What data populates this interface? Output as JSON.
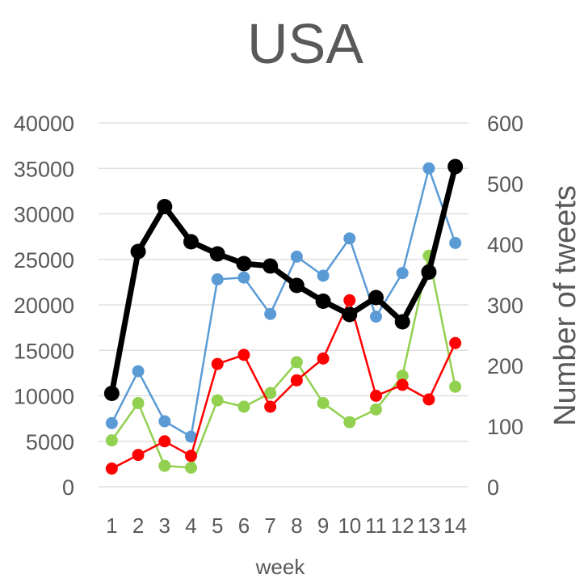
{
  "chart_data": {
    "type": "line",
    "title": "USA",
    "xlabel": "week",
    "ylabel_left": "",
    "ylabel_right": "Number of tweets",
    "categories": [
      "1",
      "2",
      "3",
      "4",
      "5",
      "6",
      "7",
      "8",
      "9",
      "10",
      "11",
      "12",
      "13",
      "14"
    ],
    "y_left": {
      "min": 0,
      "max": 40000,
      "step": 5000,
      "ticks": [
        "0",
        "5000",
        "10000",
        "15000",
        "20000",
        "25000",
        "30000",
        "35000",
        "40000"
      ]
    },
    "y_right": {
      "min": 0,
      "max": 600,
      "step": 100,
      "ticks": [
        "0",
        "100",
        "200",
        "300",
        "400",
        "500",
        "600"
      ]
    },
    "grid": true,
    "legend": "none",
    "series": [
      {
        "axis": "left",
        "color": "#5b9bd5",
        "values": [
          7000,
          12700,
          7200,
          5500,
          22800,
          23000,
          19000,
          25300,
          23200,
          27300,
          18700,
          23500,
          35000,
          26800
        ]
      },
      {
        "axis": "left",
        "color": "#92d050",
        "values": [
          5100,
          9200,
          2300,
          2100,
          9500,
          8800,
          10300,
          13700,
          9200,
          7100,
          8500,
          12200,
          25400,
          11000
        ]
      },
      {
        "axis": "left",
        "color": "#ff0000",
        "values": [
          2000,
          3500,
          5000,
          3400,
          13500,
          14500,
          8800,
          11700,
          14100,
          20500,
          10000,
          11200,
          9600,
          15800
        ]
      },
      {
        "axis": "right",
        "color": "#000000",
        "values": [
          154,
          388,
          462,
          404,
          384,
          368,
          364,
          332,
          306,
          284,
          312,
          272,
          354,
          528
        ]
      }
    ]
  }
}
